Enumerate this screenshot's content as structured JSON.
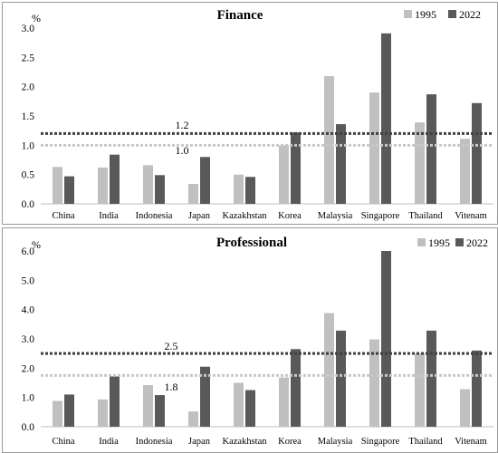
{
  "chart_data": [
    {
      "type": "bar",
      "title": "Finance",
      "unit_label": "%",
      "categories": [
        "China",
        "India",
        "Indonesia",
        "Japan",
        "Kazakhstan",
        "Korea",
        "Malaysia",
        "Singapore",
        "Thailand",
        "Vitenam"
      ],
      "series": [
        {
          "name": "1995",
          "color": "#c0c0c0",
          "values": [
            0.63,
            0.62,
            0.66,
            0.34,
            0.5,
            1.0,
            2.18,
            1.9,
            1.39,
            1.11
          ]
        },
        {
          "name": "2022",
          "color": "#595959",
          "values": [
            0.47,
            0.84,
            0.49,
            0.8,
            0.46,
            1.22,
            1.36,
            2.91,
            1.87,
            1.72
          ]
        }
      ],
      "reference_lines": [
        {
          "value": 1.2,
          "label": "1.2",
          "color": "#404040"
        },
        {
          "value": 1.0,
          "label": "1.0",
          "color": "#c8c8c8"
        }
      ],
      "ylim": [
        0,
        3.0
      ],
      "yticks": [
        "0.0",
        "0.5",
        "1.0",
        "1.5",
        "2.0",
        "2.5",
        "3.0"
      ],
      "legend_position": "top-right"
    },
    {
      "type": "bar",
      "title": "Professional",
      "unit_label": "%",
      "categories": [
        "China",
        "India",
        "Indonesia",
        "Japan",
        "Kazakhstan",
        "Korea",
        "Malaysia",
        "Singapore",
        "Thailand",
        "Vitenam"
      ],
      "series": [
        {
          "name": "1995",
          "color": "#c0c0c0",
          "values": [
            0.88,
            0.93,
            1.42,
            0.52,
            1.5,
            1.68,
            3.88,
            2.98,
            2.5,
            1.28
          ]
        },
        {
          "name": "2022",
          "color": "#595959",
          "values": [
            1.1,
            1.72,
            1.08,
            2.05,
            1.25,
            2.65,
            3.28,
            6.0,
            3.28,
            2.6
          ]
        }
      ],
      "reference_lines": [
        {
          "value": 2.5,
          "label": "2.5",
          "color": "#404040"
        },
        {
          "value": 1.75,
          "label": "1.8",
          "color": "#c8c8c8"
        }
      ],
      "ylim": [
        0,
        6.0
      ],
      "yticks": [
        "0.0",
        "1.0",
        "2.0",
        "3.0",
        "4.0",
        "5.0",
        "6.0"
      ],
      "legend_position": "top-right"
    }
  ]
}
